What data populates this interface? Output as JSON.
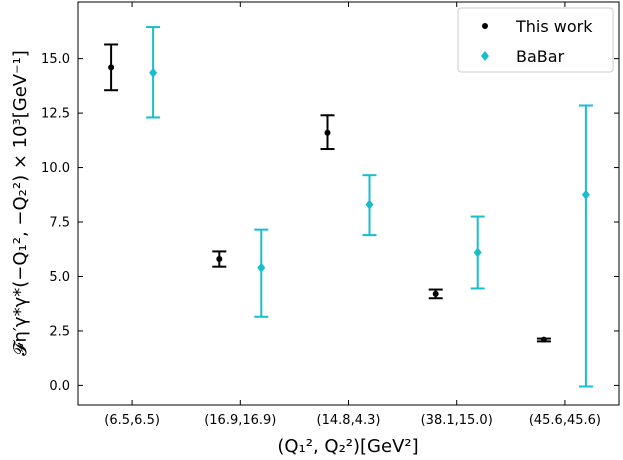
{
  "chart_data": {
    "type": "scatter",
    "categories": [
      "(6.5,6.5)",
      "(16.9,16.9)",
      "(14.8,4.3)",
      "(38.1,15.0)",
      "(45.6,45.6)"
    ],
    "xlabel": "(Q₁², Q₂²)[GeV²]",
    "ylabel": "𝓕η′γ*γ*(−Q₁², −Q₂²) × 10³[GeV⁻¹]",
    "ylim": [
      -0.9,
      17.6
    ],
    "yticks": [
      "0.0",
      "2.5",
      "5.0",
      "7.5",
      "10.0",
      "12.5",
      "15.0"
    ],
    "grid": false,
    "legend": "top-right",
    "series": [
      {
        "name": "This work",
        "marker": "circle",
        "color": "#000000",
        "values": [
          14.6,
          5.8,
          11.6,
          4.2,
          2.1
        ],
        "err_low": [
          13.55,
          5.45,
          10.85,
          4.0,
          2.02
        ],
        "err_high": [
          15.65,
          6.15,
          12.4,
          4.4,
          2.15
        ]
      },
      {
        "name": "BaBar",
        "marker": "diamond",
        "color": "#17BECF",
        "values": [
          14.35,
          5.4,
          8.3,
          6.1,
          8.75
        ],
        "err_low": [
          12.3,
          3.15,
          6.9,
          4.45,
          -0.05
        ],
        "err_high": [
          16.45,
          7.15,
          9.65,
          7.75,
          12.85
        ]
      }
    ]
  }
}
